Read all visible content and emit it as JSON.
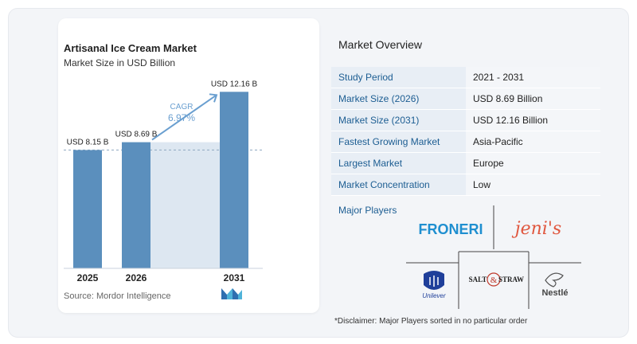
{
  "chart_data": {
    "type": "bar",
    "title": "Artisanal Ice Cream Market",
    "subtitle": "Market Size in USD Billion",
    "categories": [
      "2025",
      "2026",
      "2031"
    ],
    "values": [
      8.15,
      8.69,
      12.16
    ],
    "data_labels": [
      "USD 8.15 B",
      "USD 8.69 B",
      "USD 12.16 B"
    ],
    "cagr_label": "CAGR",
    "cagr_value": "6.97%",
    "ylim": [
      0,
      13
    ],
    "grid": false
  },
  "source": "Source: Mordor Intelligence",
  "overview": {
    "title": "Market Overview",
    "rows": [
      {
        "label": "Study Period",
        "value": "2021 - 2031"
      },
      {
        "label": "Market Size (2026)",
        "value": "USD 8.69 Billion"
      },
      {
        "label": "Market Size (2031)",
        "value": "USD 12.16 Billion"
      },
      {
        "label": "Fastest Growing Market",
        "value": "Asia-Pacific"
      },
      {
        "label": "Largest Market",
        "value": "Europe"
      },
      {
        "label": "Market Concentration",
        "value": "Low"
      }
    ]
  },
  "players": {
    "label": "Major Players",
    "logos": [
      "FRONERI",
      "jeni's",
      "Unilever",
      "SALT & STRAW",
      "Nestlé"
    ]
  },
  "disclaimer": "*Disclaimer: Major Players sorted in no particular order",
  "colors": {
    "bar": "#5b8fbd",
    "bar_dark": "#4a7dab",
    "shade": "#dde7f1",
    "accent_label": "#1c5d92",
    "arrow": "#6a9fd0"
  }
}
